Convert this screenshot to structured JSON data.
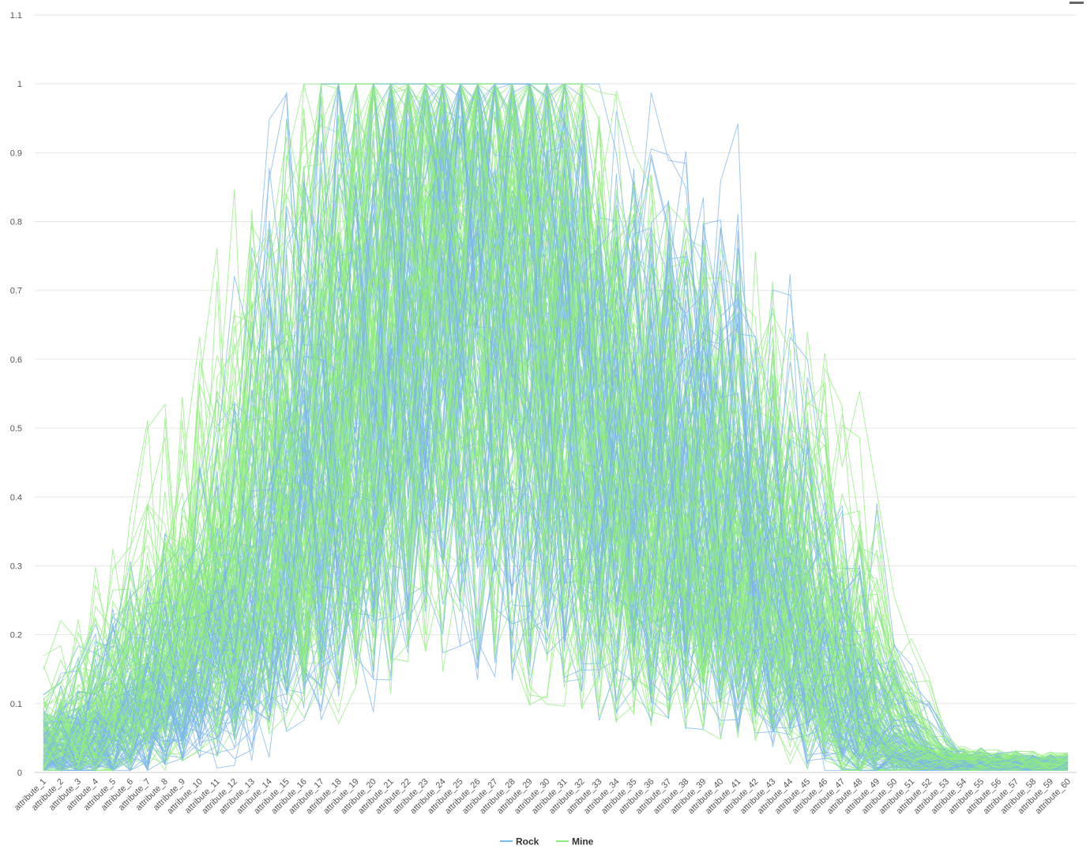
{
  "chart_data": {
    "type": "line",
    "title": "",
    "xlabel": "",
    "ylabel": "",
    "categories": [
      "attribute_1",
      "attribute_2",
      "attribute_3",
      "attribute_4",
      "attribute_5",
      "attribute_6",
      "attribute_7",
      "attribute_8",
      "attribute_9",
      "attribute_10",
      "attribute_11",
      "attribute_12",
      "attribute_13",
      "attribute_14",
      "attribute_15",
      "attribute_16",
      "attribute_17",
      "attribute_18",
      "attribute_19",
      "attribute_20",
      "attribute_21",
      "attribute_22",
      "attribute_23",
      "attribute_24",
      "attribute_25",
      "attribute_26",
      "attribute_27",
      "attribute_28",
      "attribute_29",
      "attribute_30",
      "attribute_31",
      "attribute_32",
      "attribute_33",
      "attribute_34",
      "attribute_35",
      "attribute_36",
      "attribute_37",
      "attribute_38",
      "attribute_39",
      "attribute_40",
      "attribute_41",
      "attribute_42",
      "attribute_43",
      "attribute_44",
      "attribute_45",
      "attribute_46",
      "attribute_47",
      "attribute_48",
      "attribute_49",
      "attribute_50",
      "attribute_51",
      "attribute_52",
      "attribute_53",
      "attribute_54",
      "attribute_55",
      "attribute_56",
      "attribute_57",
      "attribute_58",
      "attribute_59",
      "attribute_60"
    ],
    "ylim": [
      0,
      1.1
    ],
    "yticks": [
      "0",
      "0.1",
      "0.2",
      "0.3",
      "0.4",
      "0.5",
      "0.6",
      "0.7",
      "0.8",
      "0.9",
      "1",
      "1.1"
    ],
    "ytick_values": [
      0,
      0.1,
      0.2,
      0.3,
      0.4,
      0.5,
      0.6,
      0.7,
      0.8,
      0.9,
      1,
      1.1
    ],
    "grid": true,
    "legend_position": "bottom-center",
    "series": [
      {
        "name": "Rock",
        "color": "#7cb5ec",
        "line_count": 97,
        "values": [
          0.03,
          0.03,
          0.04,
          0.05,
          0.07,
          0.1,
          0.12,
          0.13,
          0.14,
          0.15,
          0.18,
          0.22,
          0.26,
          0.3,
          0.36,
          0.42,
          0.48,
          0.52,
          0.55,
          0.58,
          0.62,
          0.64,
          0.66,
          0.67,
          0.68,
          0.69,
          0.7,
          0.7,
          0.68,
          0.63,
          0.57,
          0.5,
          0.46,
          0.44,
          0.44,
          0.45,
          0.45,
          0.44,
          0.42,
          0.38,
          0.34,
          0.3,
          0.26,
          0.22,
          0.19,
          0.16,
          0.12,
          0.09,
          0.06,
          0.03,
          0.018,
          0.015,
          0.012,
          0.011,
          0.01,
          0.009,
          0.008,
          0.008,
          0.009,
          0.008
        ]
      },
      {
        "name": "Mine",
        "color": "#90ed7d",
        "line_count": 111,
        "values": [
          0.035,
          0.045,
          0.05,
          0.07,
          0.09,
          0.12,
          0.15,
          0.17,
          0.21,
          0.24,
          0.27,
          0.3,
          0.32,
          0.35,
          0.38,
          0.43,
          0.49,
          0.54,
          0.58,
          0.62,
          0.66,
          0.69,
          0.71,
          0.73,
          0.74,
          0.75,
          0.76,
          0.76,
          0.72,
          0.66,
          0.58,
          0.5,
          0.44,
          0.4,
          0.38,
          0.37,
          0.36,
          0.36,
          0.35,
          0.34,
          0.33,
          0.31,
          0.28,
          0.26,
          0.24,
          0.21,
          0.16,
          0.12,
          0.08,
          0.04,
          0.022,
          0.018,
          0.015,
          0.013,
          0.012,
          0.011,
          0.01,
          0.01,
          0.011,
          0.01
        ]
      }
    ]
  },
  "legend": {
    "items": [
      "Rock",
      "Mine"
    ]
  }
}
